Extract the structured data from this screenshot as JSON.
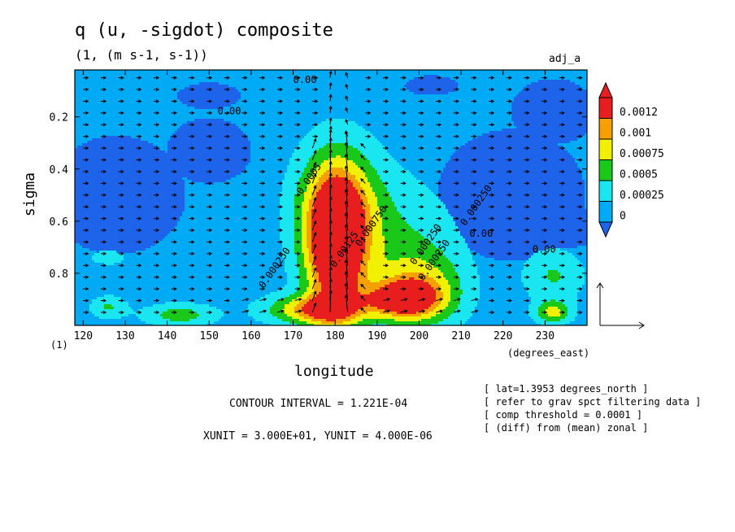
{
  "chart_data": {
    "type": "heatmap",
    "title": "q (u, -sigdot) composite",
    "units": "(1, (m s-1, s-1))",
    "tag": "adj_a",
    "xlabel": "longitude",
    "x_unit": "(degrees_east)",
    "ylabel": "sigma",
    "y_unit": "(1)",
    "xlim": [
      118,
      240
    ],
    "ylim": [
      0.02,
      1.0
    ],
    "y_reversed": true,
    "x_ticks": [
      120,
      130,
      140,
      150,
      160,
      170,
      180,
      190,
      200,
      210,
      220,
      230
    ],
    "y_ticks": [
      0.2,
      0.4,
      0.6,
      0.8
    ],
    "legend": {
      "placement": "right",
      "levels": [
        "0.0012",
        "0.001",
        "0.00075",
        "0.0005",
        "0.00025",
        "0"
      ],
      "colors": [
        "#e81e1e",
        "#f5a000",
        "#f0f000",
        "#19c819",
        "#19e6f0",
        "#00aaf5",
        "#1e64eb"
      ]
    },
    "contour_labels": [
      {
        "text": "0.00",
        "x": 170,
        "y": 0.07
      },
      {
        "text": "0.00",
        "x": 152,
        "y": 0.19
      },
      {
        "text": "0.00",
        "x": 212,
        "y": 0.66
      },
      {
        "text": "0.00",
        "x": 227,
        "y": 0.72
      },
      {
        "text": "0.000250",
        "x": 211,
        "y": 0.62
      },
      {
        "text": "0.000250",
        "x": 199,
        "y": 0.77
      },
      {
        "text": "0.000250",
        "x": 201,
        "y": 0.83
      },
      {
        "text": "0.000250",
        "x": 163,
        "y": 0.86
      },
      {
        "text": "0.00125",
        "x": 180,
        "y": 0.78
      },
      {
        "text": "0.000750",
        "x": 186,
        "y": 0.7
      },
      {
        "text": "0.0005",
        "x": 172,
        "y": 0.5
      }
    ],
    "fields": [
      {
        "x": 180,
        "y": 0.72,
        "sx": 5,
        "sy": 0.2,
        "amp": 0.00135
      },
      {
        "x": 181,
        "y": 0.55,
        "sx": 7,
        "sy": 0.16,
        "amp": 0.0008
      },
      {
        "x": 196,
        "y": 0.9,
        "sx": 6,
        "sy": 0.05,
        "amp": 0.0011
      },
      {
        "x": 201,
        "y": 0.86,
        "sx": 7,
        "sy": 0.1,
        "amp": 0.0006
      },
      {
        "x": 196,
        "y": 0.7,
        "sx": 9,
        "sy": 0.18,
        "amp": 0.00035
      },
      {
        "x": 175,
        "y": 0.94,
        "sx": 8,
        "sy": 0.04,
        "amp": 0.0009
      },
      {
        "x": 143,
        "y": 0.96,
        "sx": 6,
        "sy": 0.03,
        "amp": 0.0005
      },
      {
        "x": 126,
        "y": 0.93,
        "sx": 3,
        "sy": 0.03,
        "amp": 0.0004
      },
      {
        "x": 126,
        "y": 0.74,
        "sx": 3,
        "sy": 0.02,
        "amp": 0.0003
      },
      {
        "x": 232,
        "y": 0.81,
        "sx": 5,
        "sy": 0.07,
        "amp": 0.0004
      },
      {
        "x": 232,
        "y": 0.95,
        "sx": 3,
        "sy": 0.03,
        "amp": 0.0007
      }
    ],
    "zero_regions": [
      {
        "x": 128,
        "y": 0.5,
        "sx": 13,
        "sy": 0.18
      },
      {
        "x": 150,
        "y": 0.33,
        "sx": 8,
        "sy": 0.1
      },
      {
        "x": 222,
        "y": 0.5,
        "sx": 14,
        "sy": 0.2
      },
      {
        "x": 232,
        "y": 0.18,
        "sx": 8,
        "sy": 0.1
      },
      {
        "x": 150,
        "y": 0.12,
        "sx": 6,
        "sy": 0.04
      },
      {
        "x": 203,
        "y": 0.08,
        "sx": 5,
        "sy": 0.03
      },
      {
        "x": 232,
        "y": 0.62,
        "sx": 10,
        "sy": 0.07
      }
    ],
    "vector_reference": {
      "xunit": 30,
      "yunit": 4e-06
    },
    "plume": {
      "x_center": 180,
      "half_width": 4,
      "sigma_top": 0.3
    },
    "annotations": [
      "CONTOUR INTERVAL = 1.221E-04",
      "XUNIT = 3.000E+01, YUNIT = 4.000E-06"
    ],
    "notes": [
      "[ lat=1.3953 degrees_north ]",
      "[ refer to grav spct filtering data ]",
      "[ comp threshold = 0.0001 ]",
      "[ (diff) from (mean) zonal ]"
    ]
  }
}
